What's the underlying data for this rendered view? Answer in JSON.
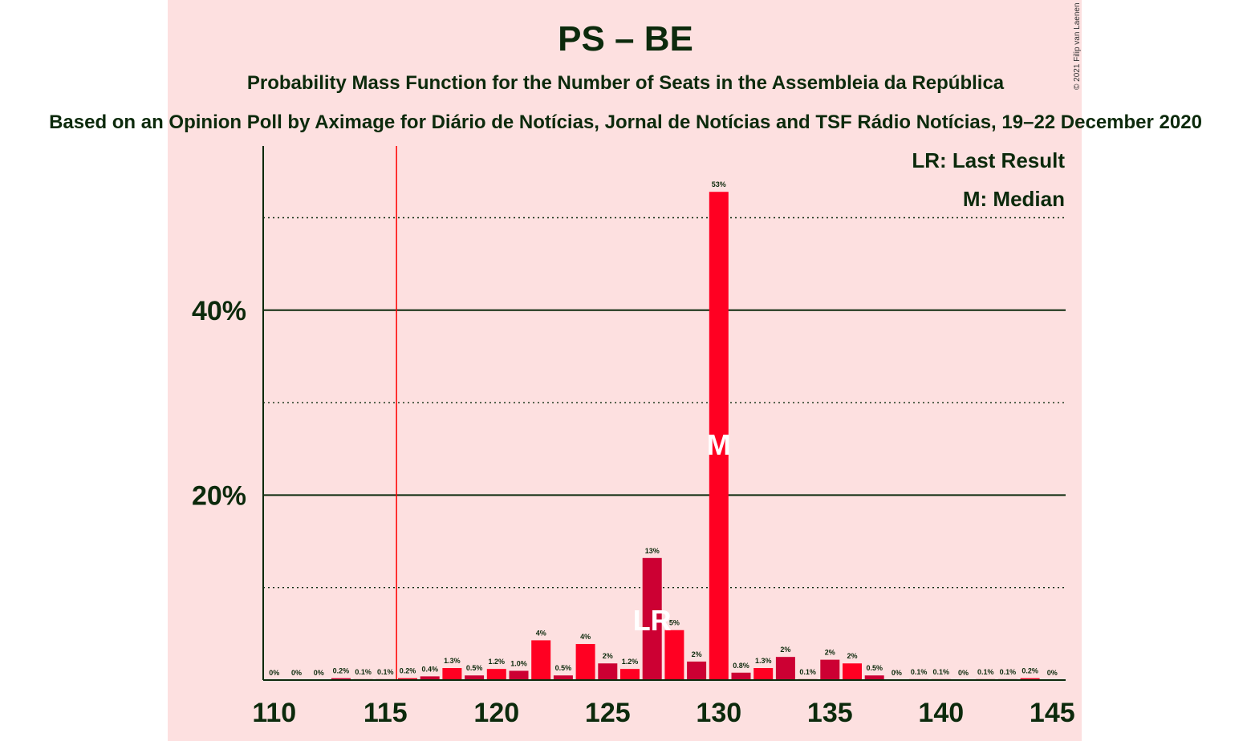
{
  "title": "PS – BE",
  "subtitle": "Probability Mass Function for the Number of Seats in the Assembleia da República",
  "source": "Based on an Opinion Poll by Aximage for Diário de Notícias, Jornal de Notícias and TSF Rádio Notícias, 19–22 December 2020",
  "credit": "© 2021 Filip van Laenen",
  "legend": {
    "last_result": "LR: Last Result",
    "median": "M: Median"
  },
  "colors": {
    "panel_background": "#fde0e0",
    "bar_red": "#ff0022",
    "bar_crimson": "#cc0033",
    "majority_line": "#ff0000",
    "text": "#0c2a0c"
  },
  "chart_data": {
    "type": "bar",
    "x": [
      110,
      111,
      112,
      113,
      114,
      115,
      116,
      117,
      118,
      119,
      120,
      121,
      122,
      123,
      124,
      125,
      126,
      127,
      128,
      129,
      130,
      131,
      132,
      133,
      134,
      135,
      136,
      137,
      138,
      139,
      140,
      141,
      142,
      143,
      144,
      145
    ],
    "values": [
      0,
      0,
      0,
      0.2,
      0.1,
      0.1,
      0.2,
      0.4,
      1.3,
      0.5,
      1.2,
      1.0,
      4.3,
      0.5,
      3.9,
      1.8,
      1.2,
      13.2,
      5.4,
      2.0,
      52.8,
      0.8,
      1.3,
      2.5,
      0.1,
      2.2,
      1.8,
      0.5,
      0,
      0.1,
      0.1,
      0,
      0.1,
      0.1,
      0.2,
      0
    ],
    "value_labels": [
      "0%",
      "0%",
      "0%",
      "0.2%",
      "0.1%",
      "0.1%",
      "0.2%",
      "0.4%",
      "1.3%",
      "0.5%",
      "1.2%",
      "1.0%",
      "4%",
      "0.5%",
      "4%",
      "2%",
      "1.2%",
      "13%",
      "5%",
      "2%",
      "53%",
      "0.8%",
      "1.3%",
      "2%",
      "0.1%",
      "2%",
      "2%",
      "0.5%",
      "0%",
      "0.1%",
      "0.1%",
      "0%",
      "0.1%",
      "0.1%",
      "0.2%",
      "0%"
    ],
    "bar_colors": [
      "red",
      "crimson",
      "red",
      "crimson",
      "red",
      "crimson",
      "red",
      "crimson",
      "red",
      "crimson",
      "red",
      "crimson",
      "red",
      "crimson",
      "red",
      "crimson",
      "red",
      "crimson",
      "red",
      "crimson",
      "red",
      "crimson",
      "red",
      "crimson",
      "red",
      "crimson",
      "red",
      "crimson",
      "red",
      "crimson",
      "red",
      "crimson",
      "red",
      "crimson",
      "red",
      "crimson"
    ],
    "xlim": [
      110,
      145
    ],
    "x_tick_labels": [
      "110",
      "115",
      "120",
      "125",
      "130",
      "135",
      "140",
      "145"
    ],
    "ylim": [
      0,
      57.5
    ],
    "y_tick_labels": [
      {
        "value": 20,
        "label": "20%"
      },
      {
        "value": 40,
        "label": "40%"
      }
    ],
    "y_minor_gridlines": [
      10,
      30,
      50
    ],
    "majority_threshold": 116,
    "last_result": {
      "seats": 127,
      "marker": "LR"
    },
    "median": {
      "seats": 130,
      "marker": "M"
    },
    "legend_position": "top-right"
  }
}
